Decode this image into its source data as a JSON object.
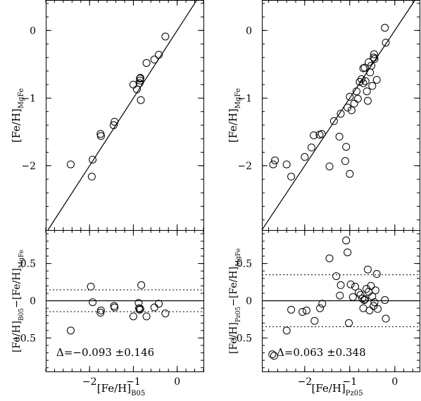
{
  "chart_data": [
    {
      "type": "scatter",
      "panel": "top-left",
      "ylabel": {
        "main": "[Fe/H]",
        "sub": "MgFe"
      },
      "xlim": [
        -3.0,
        0.6
      ],
      "ylim": [
        -2.95,
        0.45
      ],
      "yticks": [
        0,
        -1,
        -2
      ],
      "ytick_labels": [
        "0",
        "−1",
        "−2"
      ],
      "xticks": [
        -2,
        -1,
        0
      ],
      "one_to_one_line": true,
      "points": [
        {
          "x": -2.43,
          "y": -1.98
        },
        {
          "x": -1.95,
          "y": -2.16
        },
        {
          "x": -1.93,
          "y": -1.91
        },
        {
          "x": -1.75,
          "y": -1.53
        },
        {
          "x": -1.74,
          "y": -1.56
        },
        {
          "x": -1.43,
          "y": -1.35
        },
        {
          "x": -1.45,
          "y": -1.4
        },
        {
          "x": -1.0,
          "y": -0.8
        },
        {
          "x": -0.92,
          "y": -0.87
        },
        {
          "x": -0.86,
          "y": -0.78
        },
        {
          "x": -0.85,
          "y": -0.74
        },
        {
          "x": -0.85,
          "y": -0.71
        },
        {
          "x": -0.84,
          "y": -0.7
        },
        {
          "x": -0.83,
          "y": -1.03
        },
        {
          "x": -0.7,
          "y": -0.48
        },
        {
          "x": -0.52,
          "y": -0.43
        },
        {
          "x": -0.42,
          "y": -0.36
        },
        {
          "x": -0.27,
          "y": -0.09
        }
      ]
    },
    {
      "type": "scatter",
      "panel": "top-right",
      "ylabel": {
        "main": "[Fe/H]",
        "sub": "MgFe"
      },
      "xlim": [
        -2.95,
        0.55
      ],
      "ylim": [
        -2.95,
        0.45
      ],
      "yticks": [
        0,
        -1,
        -2
      ],
      "ytick_labels": [
        "0",
        "−1",
        "−2"
      ],
      "xticks": [
        -2,
        -1,
        0
      ],
      "one_to_one_line": true,
      "points": [
        {
          "x": -2.66,
          "y": -1.92
        },
        {
          "x": -2.7,
          "y": -1.98
        },
        {
          "x": -2.4,
          "y": -1.98
        },
        {
          "x": -2.3,
          "y": -2.16
        },
        {
          "x": -2.0,
          "y": -1.87
        },
        {
          "x": -1.85,
          "y": -1.73
        },
        {
          "x": -1.8,
          "y": -1.55
        },
        {
          "x": -1.67,
          "y": -1.54
        },
        {
          "x": -1.62,
          "y": -1.53
        },
        {
          "x": -1.45,
          "y": -2.01
        },
        {
          "x": -1.35,
          "y": -1.34
        },
        {
          "x": -1.23,
          "y": -1.57
        },
        {
          "x": -1.2,
          "y": -1.23
        },
        {
          "x": -1.1,
          "y": -1.93
        },
        {
          "x": -1.08,
          "y": -1.72
        },
        {
          "x": -1.05,
          "y": -1.14
        },
        {
          "x": -1.0,
          "y": -2.12
        },
        {
          "x": -1.0,
          "y": -0.98
        },
        {
          "x": -0.96,
          "y": -1.18
        },
        {
          "x": -0.9,
          "y": -1.08
        },
        {
          "x": -0.85,
          "y": -0.9
        },
        {
          "x": -0.82,
          "y": -1.01
        },
        {
          "x": -0.78,
          "y": -0.76
        },
        {
          "x": -0.74,
          "y": -0.72
        },
        {
          "x": -0.7,
          "y": -0.78
        },
        {
          "x": -0.7,
          "y": -0.56
        },
        {
          "x": -0.67,
          "y": -0.55
        },
        {
          "x": -0.65,
          "y": -0.75
        },
        {
          "x": -0.62,
          "y": -0.9
        },
        {
          "x": -0.6,
          "y": -1.04
        },
        {
          "x": -0.58,
          "y": -0.47
        },
        {
          "x": -0.55,
          "y": -0.62
        },
        {
          "x": -0.52,
          "y": -0.52
        },
        {
          "x": -0.5,
          "y": -0.82
        },
        {
          "x": -0.47,
          "y": -0.4
        },
        {
          "x": -0.46,
          "y": -0.35
        },
        {
          "x": -0.45,
          "y": -0.42
        },
        {
          "x": -0.4,
          "y": -0.73
        },
        {
          "x": -0.22,
          "y": 0.04
        },
        {
          "x": -0.2,
          "y": -0.18
        }
      ]
    },
    {
      "type": "scatter",
      "panel": "bottom-left",
      "xlabel": {
        "main": "[Fe/H]",
        "sub": "B05"
      },
      "ylabel": {
        "main": "[Fe/H]",
        "sub1": "B05",
        "mid": "−[Fe/H]",
        "sub2": "MgFe"
      },
      "xlim": [
        -3.0,
        0.6
      ],
      "ylim": [
        -0.95,
        0.95
      ],
      "yticks": [
        0.5,
        0,
        -0.5
      ],
      "ytick_labels": [
        "0.5",
        "0",
        "−0.5"
      ],
      "xticks": [
        -2,
        -1,
        0
      ],
      "xtick_labels": [
        "−2",
        "−1",
        "0"
      ],
      "zero_line": true,
      "scatter_band": 0.146,
      "annotation": "Δ=−0.093 ±0.146",
      "points": [
        {
          "x": -2.43,
          "y": -0.4
        },
        {
          "x": -1.97,
          "y": 0.19
        },
        {
          "x": -1.93,
          "y": -0.02
        },
        {
          "x": -1.74,
          "y": -0.13
        },
        {
          "x": -1.75,
          "y": -0.16
        },
        {
          "x": -1.44,
          "y": -0.07
        },
        {
          "x": -1.43,
          "y": -0.09
        },
        {
          "x": -1.0,
          "y": -0.21
        },
        {
          "x": -0.88,
          "y": -0.03
        },
        {
          "x": -0.87,
          "y": -0.1
        },
        {
          "x": -0.86,
          "y": -0.12
        },
        {
          "x": -0.84,
          "y": -0.11
        },
        {
          "x": -0.82,
          "y": 0.21
        },
        {
          "x": -0.7,
          "y": -0.21
        },
        {
          "x": -0.52,
          "y": -0.09
        },
        {
          "x": -0.42,
          "y": -0.04
        },
        {
          "x": -0.27,
          "y": -0.17
        }
      ]
    },
    {
      "type": "scatter",
      "panel": "bottom-right",
      "xlabel": {
        "main": "[Fe/H]",
        "sub": "Pz05"
      },
      "ylabel": {
        "main": "[Fe/H]",
        "sub1": "Pz05",
        "mid": "−[Fe/H]",
        "sub2": "MgFe"
      },
      "xlim": [
        -2.95,
        0.55
      ],
      "ylim": [
        -0.95,
        0.95
      ],
      "yticks": [
        0.5,
        0,
        -0.5
      ],
      "ytick_labels": [
        "0.5",
        "0",
        "−0.5"
      ],
      "xticks": [
        -2,
        -1,
        0
      ],
      "xtick_labels": [
        "−2",
        "−1",
        "0"
      ],
      "zero_line": true,
      "scatter_band": 0.348,
      "annotation": "Δ=0.063 ±0.348",
      "points": [
        {
          "x": -2.72,
          "y": -0.72
        },
        {
          "x": -2.68,
          "y": -0.74
        },
        {
          "x": -2.4,
          "y": -0.4
        },
        {
          "x": -2.3,
          "y": -0.12
        },
        {
          "x": -2.05,
          "y": -0.15
        },
        {
          "x": -1.96,
          "y": -0.13
        },
        {
          "x": -1.78,
          "y": -0.27
        },
        {
          "x": -1.66,
          "y": -0.1
        },
        {
          "x": -1.61,
          "y": -0.04
        },
        {
          "x": -1.45,
          "y": 0.57
        },
        {
          "x": -1.3,
          "y": 0.33
        },
        {
          "x": -1.22,
          "y": 0.07
        },
        {
          "x": -1.2,
          "y": 0.21
        },
        {
          "x": -1.08,
          "y": 0.81
        },
        {
          "x": -1.05,
          "y": 0.65
        },
        {
          "x": -1.02,
          "y": -0.3
        },
        {
          "x": -0.98,
          "y": 0.22
        },
        {
          "x": -0.93,
          "y": 0.05
        },
        {
          "x": -0.88,
          "y": 0.19
        },
        {
          "x": -0.8,
          "y": 0.11
        },
        {
          "x": -0.76,
          "y": 0.08
        },
        {
          "x": -0.72,
          "y": 0.03
        },
        {
          "x": -0.7,
          "y": -0.1
        },
        {
          "x": -0.68,
          "y": 0.01
        },
        {
          "x": -0.66,
          "y": 0.02
        },
        {
          "x": -0.63,
          "y": 0.16
        },
        {
          "x": -0.6,
          "y": 0.42
        },
        {
          "x": -0.58,
          "y": 0.12
        },
        {
          "x": -0.56,
          "y": -0.13
        },
        {
          "x": -0.53,
          "y": 0.2
        },
        {
          "x": -0.5,
          "y": 0.06
        },
        {
          "x": -0.47,
          "y": -0.07
        },
        {
          "x": -0.45,
          "y": -0.02
        },
        {
          "x": -0.43,
          "y": 0.14
        },
        {
          "x": -0.4,
          "y": 0.36
        },
        {
          "x": -0.38,
          "y": -0.11
        },
        {
          "x": -0.22,
          "y": 0.01
        },
        {
          "x": -0.2,
          "y": -0.24
        }
      ]
    }
  ]
}
